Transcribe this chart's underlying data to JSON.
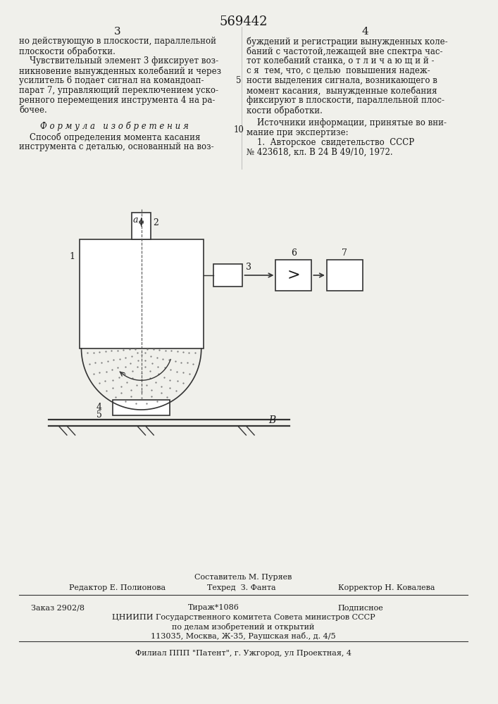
{
  "title": "569442",
  "page_num_left": "3",
  "page_num_right": "4",
  "bg_color": "#f0f0eb",
  "text_color": "#1a1a1a",
  "left_col_text": [
    "но действующую в плоскости, параллельной",
    "плоскости обработки.",
    "    Чувствительный элемент 3 фиксирует воз-",
    "никновение вынужденных колебаний и через",
    "усилитель 6 подает сигнал на командоап-",
    "парат 7, управляющий переключением уско-",
    "ренного перемещения инструмента 4 на ра-",
    "бочее."
  ],
  "formula_text": "Ф о р м у л а   и з о б р е т е н и я",
  "formula_body": [
    "    Способ определения момента касания",
    "инструмента с деталью, основанный на воз-"
  ],
  "right_col_lines": [
    "буждений и регистрации вынужденных коле-",
    "баний с частотой,лежащей вне спектра час-",
    "тот колебаний станка, о т л и ч а ю щ и й -",
    "с я  тем, что, с целью  повышения надеж-",
    "ности выделения сигнала, возникающего в",
    "момент касания,  вынужденные колебания",
    "фиксируют в плоскости, параллельной плос-",
    "кости обработки."
  ],
  "line_number_5": "5",
  "line_number_10": "10",
  "sources_title": "    Источники информации, принятые во вни-",
  "sources_body": [
    "мание при экспертизе:",
    "    1.  Авторское  свидетельство  СССР",
    "№ 423618, кл. В 24 В 49/10, 1972."
  ],
  "footer_line1_left": "Редактор Е. Полионова",
  "footer_line1_center": "Составитель М. Пуряев",
  "footer_line2_center": "Техред  З. Фанта",
  "footer_line2_right": "Корректор Н. Ковалева",
  "footer_zakaz": "Заказ 2902/8",
  "footer_tirazh": "Тираж*1086",
  "footer_podpisnoe": "Подписное",
  "footer_tsniipi": "ЦНИИПИ Государственного комитета Совета министров СССР",
  "footer_po_delam": "по делам изобретений и открытий",
  "footer_address": "113035, Москва, Ж-35, Раушская наб., д. 4/5",
  "footer_filial": "Филиал ППП \"Патент\", г. Ужгород, ул Проектная, 4"
}
